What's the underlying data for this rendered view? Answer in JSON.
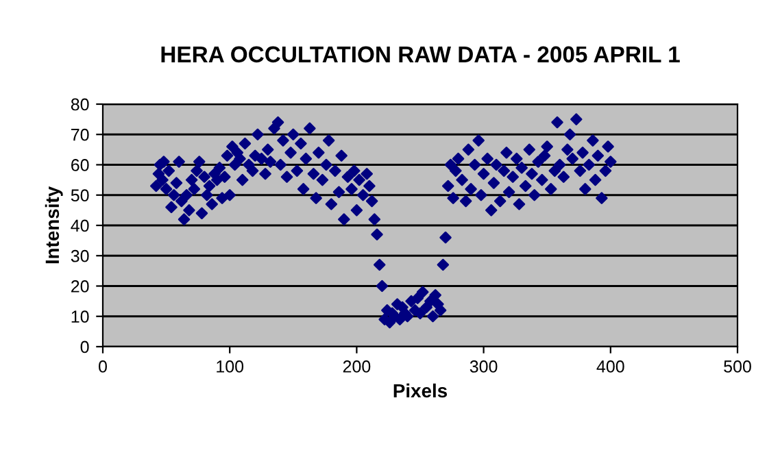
{
  "chart_data": {
    "type": "scatter",
    "title": "HERA OCCULTATION RAW DATA - 2005 APRIL 1",
    "xlabel": "Pixels",
    "ylabel": "Intensity",
    "x": [
      42,
      44,
      45,
      47,
      48,
      50,
      52,
      54,
      56,
      58,
      60,
      62,
      64,
      66,
      68,
      70,
      72,
      74,
      76,
      78,
      80,
      82,
      84,
      86,
      88,
      90,
      92,
      94,
      96,
      98,
      100,
      102,
      104,
      106,
      108,
      110,
      112,
      115,
      118,
      120,
      122,
      125,
      128,
      130,
      132,
      135,
      138,
      140,
      142,
      145,
      148,
      150,
      153,
      156,
      158,
      160,
      163,
      166,
      168,
      170,
      173,
      176,
      178,
      180,
      183,
      186,
      188,
      190,
      193,
      196,
      198,
      200,
      202,
      205,
      208,
      210,
      212,
      214,
      216,
      218,
      220,
      222,
      224,
      226,
      228,
      230,
      232,
      234,
      236,
      238,
      240,
      243,
      246,
      248,
      250,
      252,
      255,
      258,
      260,
      262,
      264,
      266,
      268,
      270,
      272,
      274,
      276,
      278,
      280,
      283,
      286,
      288,
      290,
      293,
      296,
      298,
      300,
      303,
      306,
      308,
      310,
      313,
      316,
      318,
      320,
      323,
      326,
      328,
      330,
      333,
      336,
      338,
      340,
      343,
      346,
      348,
      350,
      353,
      356,
      358,
      360,
      363,
      366,
      368,
      370,
      373,
      376,
      378,
      380,
      383,
      386,
      388,
      390,
      393,
      396,
      398,
      400
    ],
    "values": [
      53,
      57,
      60,
      55,
      61,
      52,
      58,
      46,
      50,
      54,
      61,
      48,
      42,
      50,
      45,
      55,
      52,
      58,
      61,
      44,
      56,
      50,
      53,
      47,
      57,
      55,
      59,
      49,
      56,
      63,
      50,
      66,
      60,
      64,
      62,
      55,
      67,
      60,
      58,
      63,
      70,
      62,
      57,
      65,
      61,
      72,
      74,
      60,
      68,
      56,
      64,
      70,
      58,
      67,
      52,
      62,
      72,
      57,
      49,
      64,
      55,
      60,
      68,
      47,
      58,
      51,
      63,
      42,
      56,
      52,
      58,
      45,
      55,
      50,
      57,
      53,
      48,
      42,
      37,
      27,
      20,
      9,
      12,
      8,
      11,
      10,
      14,
      9,
      13,
      11,
      10,
      15,
      12,
      16,
      11,
      18,
      13,
      15,
      10,
      17,
      14,
      12,
      27,
      36,
      53,
      60,
      49,
      58,
      62,
      55,
      48,
      65,
      52,
      60,
      68,
      50,
      57,
      62,
      45,
      54,
      60,
      48,
      58,
      64,
      51,
      56,
      62,
      47,
      59,
      53,
      65,
      57,
      50,
      61,
      55,
      63,
      66,
      52,
      58,
      74,
      60,
      56,
      65,
      70,
      62,
      75,
      58,
      64,
      52,
      60,
      68,
      55,
      63,
      49,
      58,
      66,
      61
    ],
    "color": "#000080",
    "marker": "diamond",
    "xlim": [
      0,
      500
    ],
    "xticks": [
      0,
      100,
      200,
      300,
      400,
      500
    ],
    "ylim": [
      0,
      80
    ],
    "yticks": [
      0,
      10,
      20,
      30,
      40,
      50,
      60,
      70,
      80
    ],
    "grid": "y",
    "legend": false
  }
}
